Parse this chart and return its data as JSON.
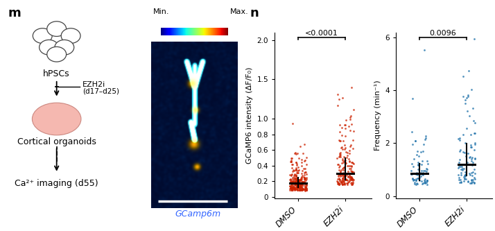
{
  "panel_m_label": "m",
  "panel_n_label": "n",
  "plot1": {
    "pvalue": "<0.0001",
    "ylabel": "GCaMP6 intensity (ΔF/F₀)",
    "categories": [
      "DMSO",
      "EZH2i"
    ],
    "yticks": [
      0,
      0.2,
      0.4,
      0.6,
      0.8,
      1.0,
      1.5,
      2.0
    ],
    "yticklabels": [
      "0",
      "0.2",
      "0.4",
      "0.6",
      "0.8",
      "1.0",
      "1.5",
      "2.0"
    ],
    "ylim": [
      -0.02,
      2.1
    ],
    "color": "#CC2200",
    "dmso_median": 0.18,
    "ezh2i_median": 0.3
  },
  "plot2": {
    "pvalue": "0.0096",
    "ylabel": "Frequency (min⁻¹)",
    "categories": [
      "DMSO",
      "EZH2i"
    ],
    "yticks": [
      0,
      2,
      4,
      6
    ],
    "yticklabels": [
      "0",
      "2",
      "4",
      "6"
    ],
    "ylim": [
      -0.1,
      6.2
    ],
    "color": "#1B6FA8",
    "dmso_median": 0.85,
    "ezh2i_median": 1.2
  },
  "colorbar_min_label": "Min.",
  "colorbar_max_label": "Max.",
  "fluorescent_label": "GCamp6m",
  "fluorescent_label_color": "#3366FF",
  "schematic_texts": {
    "hpscs": "hPSCs",
    "ezh2i": "EZH2i",
    "ezh2i_days": "(d17–d25)",
    "organoids": "Cortical organoids",
    "imaging": "Ca²⁺ imaging (d55)"
  }
}
